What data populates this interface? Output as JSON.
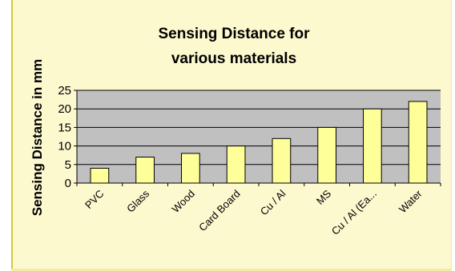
{
  "chart_data": {
    "type": "bar",
    "title_lines": [
      "Sensing Distance for",
      "various materials"
    ],
    "xlabel": "",
    "ylabel": "Sensing Distance  in mm",
    "categories": [
      "PVC",
      "Glass",
      "Wood",
      "Card Board",
      "Cu / Al",
      "MS",
      "Cu / Al (Ea...",
      "Water"
    ],
    "values": [
      4,
      7,
      8,
      10,
      12,
      15,
      20,
      22
    ],
    "ylim": [
      0,
      25
    ],
    "yticks": [
      0,
      5,
      10,
      15,
      20,
      25
    ],
    "grid": true,
    "legend": "none",
    "colors": {
      "bar_fill": "#ffff99",
      "bar_stroke": "#000000",
      "plot_bg": "#c0c0c0",
      "panel_bg": "#fdf9cf",
      "gridline": "#000000"
    }
  }
}
